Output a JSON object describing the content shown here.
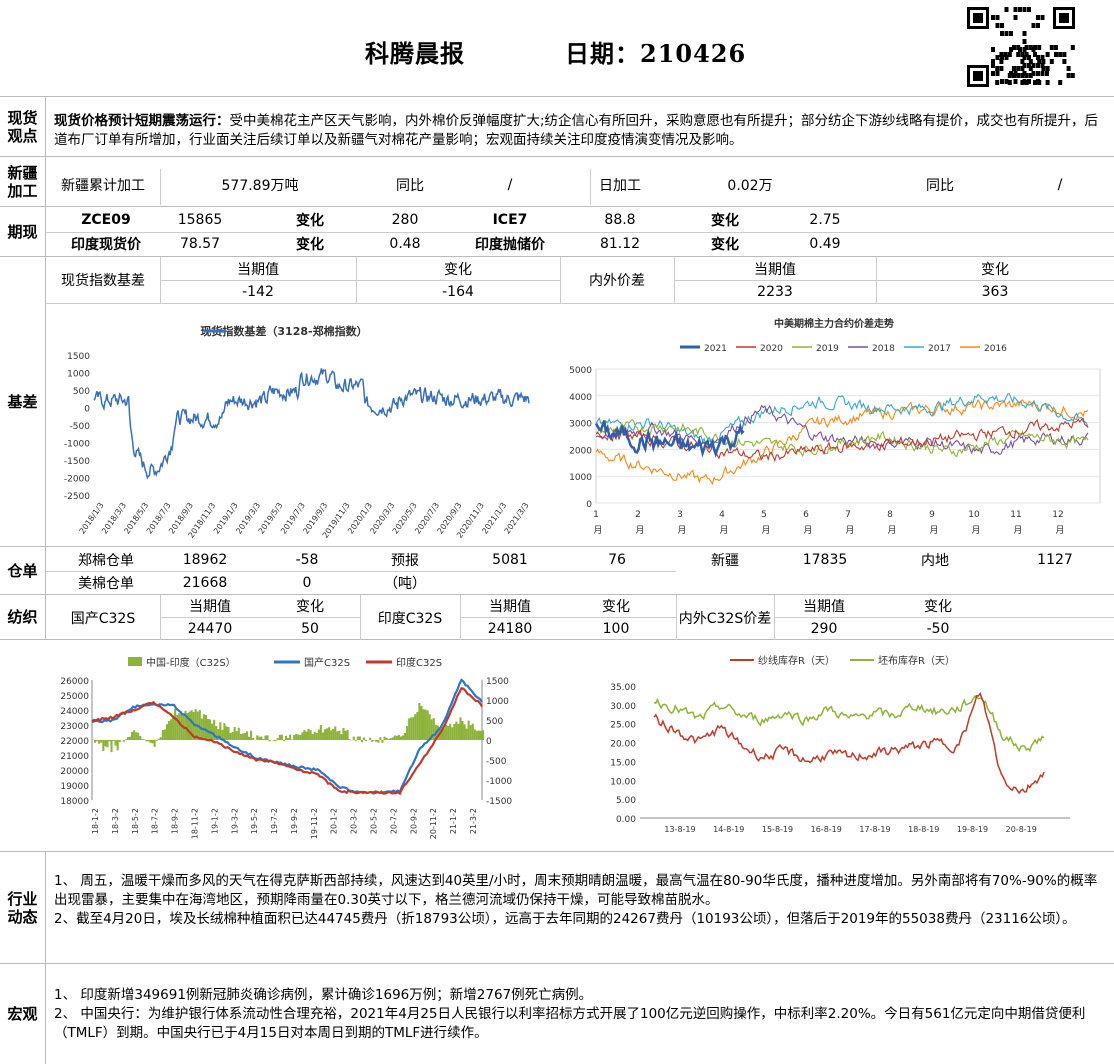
{
  "header": {
    "title": "科腾晨报",
    "date": "日期：210426"
  },
  "spot": {
    "label": "现货\n观点",
    "bold": "现货价格预计短期震荡运行：",
    "text": "受中美棉花主产区天气影响，内外棉价反弹幅度扩大;纺企信心有所回升，采购意愿也有所提升；部分纺企下游纱线略有提价，成交也有所提升，后道布厂订单有所增加，行业面关注后续订单以及新疆气对棉花产量影响；宏观面持续关注印度疫情演变情况及影响。"
  },
  "xj": {
    "label": "新疆\n加工",
    "c1": "新疆累计加工",
    "c2": "577.89万吨",
    "c3": "同比",
    "c4": "/",
    "c5": "日加工",
    "c6": "0.02万",
    "c7": "同比",
    "c8": "/"
  },
  "futures": {
    "label": "期现",
    "r1": [
      "ZCE09",
      "15865",
      "变化",
      "280",
      "ICE7",
      "88.8",
      "变化",
      "2.75"
    ],
    "r2": [
      "印度现货价",
      "78.57",
      "变化",
      "0.48",
      "印度抛储价",
      "81.12",
      "变化",
      "0.49"
    ]
  },
  "basis": {
    "label": "基差",
    "h1": "现货指数基差",
    "h2": "当期值",
    "h3": "变化",
    "h4": "内外价差",
    "h5": "当期值",
    "h6": "变化",
    "v2": "-142",
    "v3": "-164",
    "v5": "2233",
    "v6": "363"
  },
  "chart_basis": {
    "title": "现货指数基差（3128-郑棉指数）",
    "yticks": [
      "1500",
      "1000",
      "500",
      "0",
      "-500",
      "-1000",
      "-1500",
      "-2000",
      "-2500"
    ],
    "xticks": [
      "2018/1/3",
      "2018/3/3",
      "2018/5/3",
      "2018/7/3",
      "2018/9/3",
      "2018/11/3",
      "2019/1/3",
      "2019/3/3",
      "2019/5/3",
      "2019/7/3",
      "2019/9/3",
      "2019/11/3",
      "2020/1/3",
      "2020/3/3",
      "2020/5/3",
      "2020/7/3",
      "2020/9/3",
      "2020/11/3",
      "2021/1/3",
      "2021/3/3"
    ],
    "color": "#3a6fb6"
  },
  "chart_spread": {
    "title": "中美期棉主力合约价差走势",
    "legend": [
      "2021",
      "2020",
      "2019",
      "2018",
      "2017",
      "2016"
    ],
    "colors": [
      "#2e5fa8",
      "#c0392b",
      "#8db33a",
      "#7a4fa0",
      "#3aa6c8",
      "#f08a1c"
    ],
    "yticks": [
      "5000",
      "4000",
      "3000",
      "2000",
      "1000",
      "0"
    ],
    "xticks": [
      "1",
      "2",
      "3",
      "4",
      "5",
      "6",
      "7",
      "8",
      "9",
      "10",
      "11",
      "12"
    ],
    "xunit": "月"
  },
  "warehouse": {
    "label": "仓单",
    "r1": [
      "郑棉仓单",
      "18962",
      "-58",
      "预报",
      "5081",
      "76",
      "新疆",
      "17835",
      "内地",
      "1127"
    ],
    "r2": [
      "美棉仓单",
      "21668",
      "0",
      "（吨）"
    ]
  },
  "spin": {
    "label": "纺织",
    "c1": "国产C32S",
    "h1": "当期值",
    "h2": "变化",
    "v1": "24470",
    "v2": "50",
    "c2": "印度C32S",
    "h3": "当期值",
    "h4": "变化",
    "v3": "24180",
    "v4": "100",
    "c3": "内外C32S价差",
    "h5": "当期值",
    "h6": "变化",
    "v5": "290",
    "v6": "-50"
  },
  "chart_yarn": {
    "legend": [
      "中国-印度（C32S）",
      "国产C32S",
      "印度C32S"
    ],
    "colors": [
      "#8db33a",
      "#2e75c8",
      "#c0392b"
    ],
    "yticks": [
      "26000",
      "25000",
      "24000",
      "23000",
      "22000",
      "21000",
      "20000",
      "19000",
      "18000"
    ],
    "y2ticks": [
      "1500",
      "1000",
      "500",
      "0",
      "-500",
      "-1000",
      "-1500"
    ],
    "xticks": [
      "18-1-2",
      "18-3-2",
      "18-5-2",
      "18-7-2",
      "18-9-2",
      "18-11-2",
      "19-1-2",
      "19-3-2",
      "19-5-2",
      "19-7-2",
      "19-9-2",
      "19-11-2",
      "20-1-2",
      "20-3-2",
      "20-5-2",
      "20-7-2",
      "20-9-2",
      "20-11-2",
      "21-1-2",
      "21-3-2"
    ]
  },
  "chart_stock": {
    "legend": [
      "纱线库存R（天）",
      "坯布库存R（天）"
    ],
    "colors": [
      "#c0392b",
      "#8db33a"
    ],
    "yticks": [
      "35.00",
      "30.00",
      "25.00",
      "20.00",
      "15.00",
      "10.00",
      "5.00",
      "0.00"
    ],
    "xticks": [
      "13-8-19",
      "14-8-19",
      "15-8-19",
      "16-8-19",
      "17-8-19",
      "18-8-19",
      "19-8-19",
      "20-8-19"
    ]
  },
  "industry": {
    "label": "行业\n动态",
    "p1": "1、 周五，温暖干燥而多风的天气在得克萨斯西部持续，风速达到40英里/小时，周末预期晴朗温暖，最高气温在80-90华氏度，播种进度增加。另外南部将有70%-90%的概率出现雷暴，主要集中在海湾地区，预期降雨量在0.30英寸以下，格兰德河流域仍保持干燥，可能导致棉苗脱水。",
    "p2": "2、截至4月20日，埃及长绒棉种植面积已达44745费丹（折18793公顷），远高于去年同期的24267费丹（10193公顷），但落后于2019年的55038费丹（23116公顷）。"
  },
  "macro": {
    "label": "宏观",
    "p1": "1、 印度新增349691例新冠肺炎确诊病例，累计确诊1696万例；新增2767例死亡病例。",
    "p2": "2、 中国央行：为维护银行体系流动性合理充裕，2021年4月25日人民银行以利率招标方式开展了100亿元逆回购操作，中标利率2.20%。今日有561亿元定向中期借贷便利（TMLF）到期。中国央行已于4月15日对本周日到期的TMLF进行续作。"
  }
}
